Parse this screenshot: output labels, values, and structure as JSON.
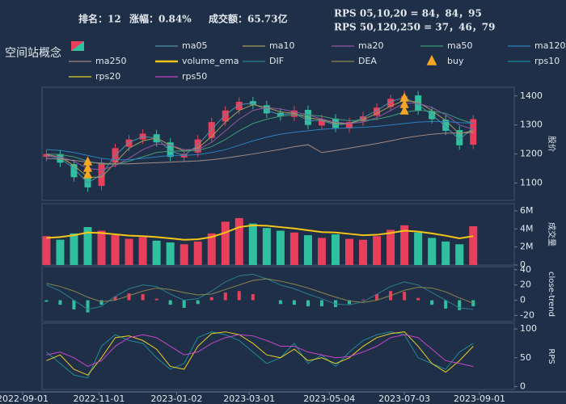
{
  "chart_data": {
    "type": "candlestick",
    "title": "空间站概念",
    "header": {
      "rank": "排名：12",
      "change_label": "涨幅：",
      "change": "0.84%",
      "turnover": "成交额：65.73亿",
      "rps_short": "RPS 05,10,20 = 84，84，95",
      "rps_long": "RPS 50,120,250 = 37，46，79"
    },
    "up_color": "#e8405c",
    "down_color": "#2fc0a0",
    "change_color": "#e0202a",
    "x": [
      "2022-09-20",
      "2022-10-01",
      "2022-10-12",
      "2022-10-23",
      "2022-11-03",
      "2022-11-14",
      "2022-11-25",
      "2022-12-06",
      "2022-12-17",
      "2022-12-28",
      "2023-01-08",
      "2023-01-19",
      "2023-01-30",
      "2023-02-10",
      "2023-02-21",
      "2023-03-04",
      "2023-03-15",
      "2023-03-26",
      "2023-04-06",
      "2023-04-17",
      "2023-04-28",
      "2023-05-09",
      "2023-05-20",
      "2023-05-31",
      "2023-06-11",
      "2023-06-22",
      "2023-07-03",
      "2023-07-14",
      "2023-07-25",
      "2023-08-05",
      "2023-08-16",
      "2023-08-27"
    ],
    "xlim": [
      "2022-09-01",
      "2023-09-01"
    ],
    "xticks": [
      "2022-09-01",
      "2022-11-01",
      "2023-01-02",
      "2023-03-01",
      "2023-05-04",
      "2023-07-03",
      "2023-09-01"
    ],
    "open": [
      1190,
      1200,
      1165,
      1120,
      1090,
      1170,
      1225,
      1250,
      1268,
      1240,
      1188,
      1205,
      1255,
      1312,
      1352,
      1382,
      1368,
      1342,
      1328,
      1352,
      1298,
      1322,
      1288,
      1312,
      1332,
      1362,
      1392,
      1402,
      1348,
      1318,
      1282,
      1232
    ],
    "high": [
      1215,
      1215,
      1180,
      1135,
      1185,
      1235,
      1265,
      1285,
      1283,
      1255,
      1215,
      1265,
      1325,
      1365,
      1395,
      1397,
      1383,
      1357,
      1365,
      1367,
      1335,
      1337,
      1325,
      1345,
      1375,
      1405,
      1418,
      1417,
      1363,
      1333,
      1297,
      1335
    ],
    "low": [
      1175,
      1155,
      1105,
      1070,
      1075,
      1155,
      1210,
      1235,
      1225,
      1175,
      1173,
      1190,
      1240,
      1297,
      1337,
      1355,
      1325,
      1315,
      1313,
      1285,
      1283,
      1275,
      1273,
      1297,
      1317,
      1347,
      1377,
      1335,
      1305,
      1265,
      1215,
      1217
    ],
    "close": [
      1200,
      1170,
      1120,
      1085,
      1170,
      1220,
      1250,
      1270,
      1240,
      1190,
      1200,
      1250,
      1310,
      1350,
      1380,
      1370,
      1340,
      1330,
      1350,
      1300,
      1320,
      1290,
      1310,
      1330,
      1360,
      1390,
      1400,
      1350,
      1320,
      1280,
      1230,
      1320
    ],
    "volume": [
      3200000,
      2800000,
      3500000,
      4200000,
      3800000,
      3300000,
      2900000,
      3100000,
      2700000,
      2500000,
      2300000,
      2600000,
      3500000,
      4800000,
      5200000,
      4600000,
      4100000,
      3800000,
      3600000,
      3300000,
      3000000,
      3400000,
      2900000,
      2800000,
      3200000,
      3900000,
      4400000,
      3600000,
      3000000,
      2600000,
      2300000,
      4300000
    ],
    "histogram": [
      -2,
      -6,
      -12,
      -16,
      -6,
      5,
      9,
      8,
      2,
      -6,
      -10,
      -5,
      4,
      10,
      12,
      8,
      0,
      -5,
      -6,
      -8,
      -8,
      -9,
      -5,
      1,
      8,
      12,
      11,
      3,
      -6,
      -11,
      -13,
      -8
    ],
    "panels": [
      {
        "ylabel": "股价",
        "ylim": [
          1040,
          1430
        ],
        "yticks": [
          1100,
          1200,
          1300,
          1400
        ]
      },
      {
        "ylabel": "成交量",
        "ylim": [
          0,
          6800000
        ],
        "yticks": [
          0,
          {
            "value": 2000000,
            "label": "2M"
          },
          {
            "value": 4000000,
            "label": "4M"
          },
          {
            "value": 6000000,
            "label": "6M"
          }
        ]
      },
      {
        "ylabel": "close-trend",
        "ylim": [
          -28,
          44
        ],
        "yticks": [
          -20,
          0,
          20,
          40
        ]
      },
      {
        "ylabel": "RPS",
        "ylim": [
          -5,
          110
        ],
        "yticks": [
          0,
          50,
          100
        ]
      }
    ],
    "series": [
      {
        "name": "ma05",
        "color": "#4f8fa3",
        "panel": 0,
        "values": [
          1195,
          1185,
          1150,
          1100,
          1130,
          1195,
          1240,
          1260,
          1255,
          1210,
          1195,
          1230,
          1285,
          1335,
          1370,
          1375,
          1350,
          1335,
          1340,
          1315,
          1315,
          1300,
          1305,
          1325,
          1350,
          1380,
          1395,
          1370,
          1335,
          1295,
          1250,
          1290
        ]
      },
      {
        "name": "ma10",
        "color": "#a39d5c",
        "panel": 0,
        "values": [
          1198,
          1190,
          1160,
          1120,
          1120,
          1170,
          1220,
          1245,
          1255,
          1230,
          1210,
          1220,
          1260,
          1310,
          1350,
          1370,
          1360,
          1345,
          1340,
          1325,
          1318,
          1305,
          1305,
          1318,
          1340,
          1365,
          1385,
          1378,
          1350,
          1315,
          1270,
          1280
        ]
      },
      {
        "name": "ma20",
        "color": "#94589e",
        "panel": 0,
        "values": [
          1195,
          1190,
          1175,
          1150,
          1145,
          1160,
          1185,
          1215,
          1235,
          1230,
          1215,
          1215,
          1240,
          1280,
          1320,
          1350,
          1360,
          1355,
          1345,
          1335,
          1320,
          1310,
          1305,
          1310,
          1325,
          1350,
          1375,
          1375,
          1360,
          1335,
          1300,
          1285
        ]
      },
      {
        "name": "ma50",
        "color": "#3f9a7a",
        "panel": 0,
        "values": [
          1200,
          1198,
          1190,
          1175,
          1165,
          1165,
          1175,
          1190,
          1205,
          1210,
          1210,
          1212,
          1225,
          1250,
          1280,
          1305,
          1320,
          1330,
          1335,
          1335,
          1330,
          1320,
          1315,
          1315,
          1320,
          1330,
          1345,
          1350,
          1348,
          1340,
          1320,
          1305
        ]
      },
      {
        "name": "ma120",
        "color": "#2f7fc0",
        "panel": 0,
        "values": [
          1215,
          1212,
          1205,
          1195,
          1185,
          1180,
          1180,
          1185,
          1190,
          1195,
          1195,
          1198,
          1205,
          1215,
          1230,
          1245,
          1258,
          1268,
          1275,
          1280,
          1285,
          1288,
          1290,
          1292,
          1295,
          1300,
          1305,
          1310,
          1312,
          1312,
          1308,
          1306
        ]
      },
      {
        "name": "ma250",
        "color": "#a08a86",
        "panel": 0,
        "values": [
          1185,
          1182,
          1178,
          1172,
          1168,
          1166,
          1166,
          1168,
          1170,
          1172,
          1174,
          1176,
          1180,
          1186,
          1193,
          1200,
          1208,
          1216,
          1225,
          1232,
          1205,
          1212,
          1220,
          1228,
          1236,
          1245,
          1255,
          1262,
          1268,
          1272,
          1272,
          1274
        ]
      },
      {
        "name": "volume_ema",
        "color": "#f5c518",
        "panel": 1,
        "values": [
          3000000,
          3100000,
          3300000,
          3600000,
          3550000,
          3400000,
          3250000,
          3200000,
          3100000,
          2950000,
          2800000,
          2850000,
          3100000,
          3600000,
          4200000,
          4400000,
          4350000,
          4200000,
          4050000,
          3850000,
          3650000,
          3600000,
          3450000,
          3300000,
          3350000,
          3550000,
          3800000,
          3700000,
          3500000,
          3250000,
          2950000,
          3200000
        ]
      },
      {
        "name": "DIF",
        "color": "#2a7f8f",
        "panel": 2,
        "values": [
          20,
          12,
          0,
          -12,
          -8,
          5,
          15,
          20,
          18,
          8,
          0,
          2,
          12,
          24,
          32,
          34,
          28,
          20,
          15,
          8,
          2,
          -5,
          -6,
          -2,
          8,
          18,
          24,
          20,
          10,
          0,
          -10,
          -12
        ]
      },
      {
        "name": "DEA",
        "color": "#8a8650",
        "panel": 2,
        "values": [
          22,
          18,
          12,
          4,
          -2,
          0,
          6,
          12,
          16,
          14,
          10,
          7,
          8,
          14,
          20,
          26,
          28,
          25,
          21,
          16,
          10,
          4,
          -1,
          -3,
          0,
          6,
          13,
          17,
          16,
          11,
          3,
          -4
        ]
      },
      {
        "name": "buy",
        "color": "#f5a623",
        "panel": 0,
        "marker": "triangle",
        "x": [
          "2022-10-23",
          "2023-07-03"
        ],
        "values": [
          1150,
          1370
        ]
      },
      {
        "name": "rps10",
        "color": "#1f8a9a",
        "panel": 3,
        "values": [
          60,
          40,
          20,
          15,
          70,
          90,
          80,
          75,
          50,
          30,
          40,
          85,
          95,
          90,
          80,
          60,
          40,
          50,
          75,
          40,
          55,
          35,
          60,
          80,
          90,
          95,
          90,
          50,
          40,
          30,
          60,
          75
        ]
      },
      {
        "name": "rps20",
        "color": "#e8d020",
        "panel": 3,
        "values": [
          45,
          55,
          30,
          20,
          50,
          85,
          88,
          80,
          65,
          35,
          30,
          70,
          92,
          95,
          90,
          75,
          55,
          50,
          65,
          45,
          50,
          40,
          50,
          70,
          85,
          92,
          95,
          70,
          40,
          25,
          45,
          70
        ]
      },
      {
        "name": "rps50",
        "color": "#c845c8",
        "panel": 3,
        "values": [
          55,
          60,
          50,
          35,
          45,
          70,
          85,
          90,
          85,
          70,
          55,
          60,
          75,
          85,
          90,
          88,
          80,
          70,
          70,
          60,
          55,
          50,
          52,
          60,
          70,
          85,
          90,
          85,
          65,
          45,
          40,
          35
        ]
      }
    ]
  }
}
